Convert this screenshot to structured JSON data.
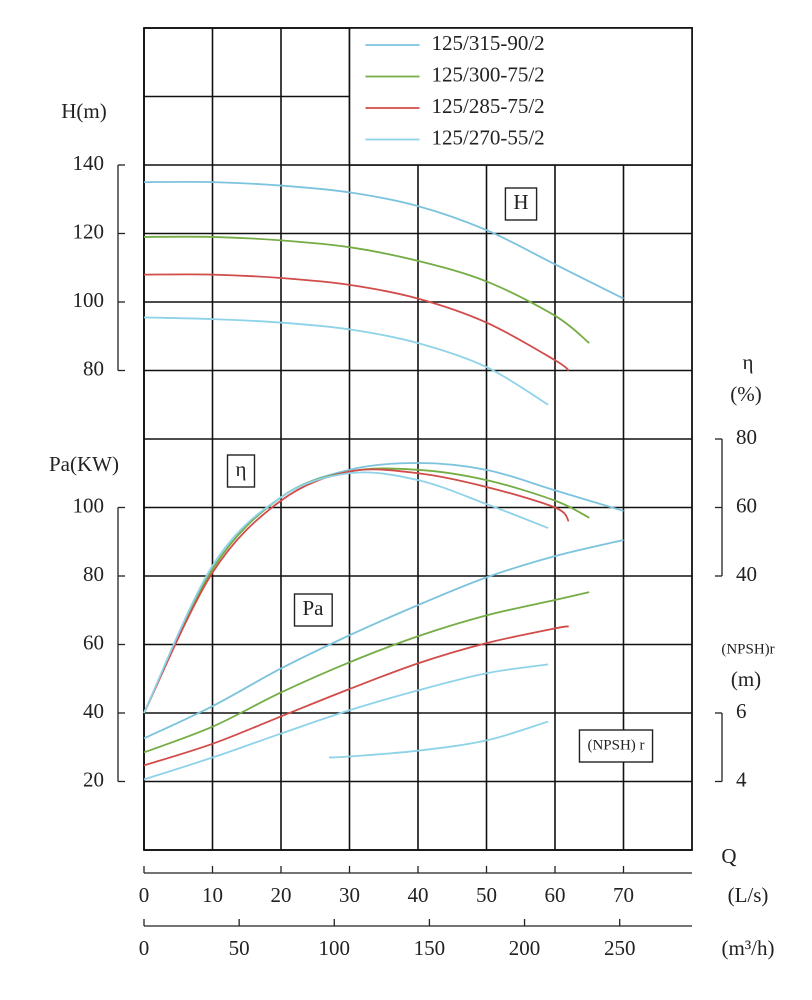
{
  "chart_data": {
    "type": "line",
    "x_label": "Q",
    "x_axes": [
      {
        "label": "(L/s)",
        "lim": [
          0,
          80
        ],
        "ticks": [
          0,
          10,
          20,
          30,
          40,
          50,
          60,
          70
        ]
      },
      {
        "label": "(m³/h)",
        "lim": [
          0,
          288
        ],
        "ticks": [
          0,
          50,
          100,
          150,
          200,
          250
        ]
      }
    ],
    "y_axes": {
      "H": {
        "label": "H(m)",
        "lim": [
          -60,
          180
        ],
        "ticks": [
          80,
          100,
          120,
          140
        ]
      },
      "Pa": {
        "label": "Pa(KW)",
        "lim": [
          0,
          240
        ],
        "ticks": [
          20,
          40,
          60,
          80,
          100
        ]
      },
      "eta": {
        "label": "η",
        "unit": "(%)",
        "lim": [
          -40,
          200
        ],
        "ticks": [
          40,
          60,
          80
        ]
      },
      "NPSH": {
        "label": "(NPSH)r",
        "unit": "(m)",
        "lim": [
          2,
          26
        ],
        "ticks": [
          4,
          6
        ]
      }
    },
    "series": [
      {
        "name": "125/315-90/2",
        "color": "#7cc3dd",
        "x": [
          0,
          10,
          20,
          30,
          40,
          50,
          60,
          70
        ],
        "H": [
          135,
          135,
          134,
          132,
          128,
          121,
          111,
          101
        ],
        "eta": [
          0,
          42,
          63,
          71,
          73,
          71,
          65,
          59
        ],
        "Pa": [
          32.6,
          42,
          53,
          62.7,
          71.5,
          79.6,
          85.8,
          90.5
        ]
      },
      {
        "name": "125/300-75/2",
        "color": "#74ad45",
        "x": [
          0,
          10,
          20,
          30,
          40,
          50,
          60,
          65
        ],
        "H": [
          119,
          119,
          118,
          116,
          112,
          106,
          96,
          88
        ],
        "eta": [
          0,
          42,
          63,
          70.5,
          71,
          68,
          62,
          57
        ],
        "Pa": [
          28.5,
          36,
          46,
          54.8,
          62.4,
          68.5,
          73,
          75.3
        ]
      },
      {
        "name": "125/285-75/2",
        "color": "#d14c4a",
        "x": [
          0,
          10,
          20,
          30,
          40,
          50,
          60,
          62
        ],
        "H": [
          108,
          108,
          107,
          105,
          101,
          94,
          83,
          80
        ],
        "eta": [
          0,
          41,
          62,
          70.5,
          70,
          66,
          60,
          56
        ],
        "Pa": [
          24.7,
          31,
          39,
          47,
          54.5,
          60.4,
          64.7,
          65.3
        ]
      },
      {
        "name": "125/270-55/2",
        "color": "#8fd3e8",
        "x": [
          0,
          10,
          20,
          30,
          40,
          50,
          59
        ],
        "H": [
          95.5,
          95,
          94,
          92,
          88,
          81,
          70
        ],
        "eta": [
          0,
          43,
          63,
          70,
          68,
          61,
          54
        ],
        "Pa": [
          20.6,
          27,
          34,
          40.8,
          46.6,
          51.6,
          54.2
        ]
      }
    ],
    "npsh": {
      "color": "#8fd3e8",
      "x": [
        27,
        30,
        40,
        50,
        59
      ],
      "values": [
        4.7,
        4.73,
        4.9,
        5.2,
        5.75
      ]
    },
    "annotations": [
      "H",
      "η",
      "Pa",
      "(NPSH) r"
    ],
    "grid": true
  }
}
